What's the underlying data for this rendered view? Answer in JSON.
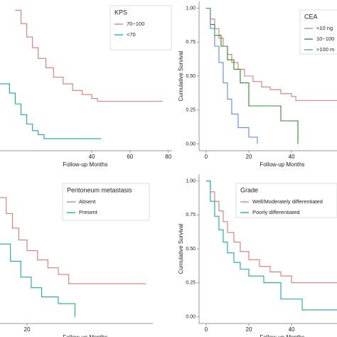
{
  "chart_data": [
    {
      "type": "line",
      "step": true,
      "legend_title": "KPS",
      "xlabel": "Follow-up Months",
      "xlim": [
        -8,
        82
      ],
      "ylim": [
        -0.05,
        1.05
      ],
      "xticks": [
        40,
        60,
        80
      ],
      "series": [
        {
          "name": "70~100",
          "color": "#d97a70",
          "x": [
            0,
            3,
            6,
            9,
            12,
            16,
            20,
            25,
            30,
            35,
            40,
            43,
            77
          ],
          "values": [
            1,
            0.9,
            0.8,
            0.72,
            0.64,
            0.57,
            0.5,
            0.45,
            0.4,
            0.37,
            0.34,
            0.32,
            0.32
          ]
        },
        {
          "name": "<70",
          "color": "#1aa6ad",
          "x": [
            -8,
            -3,
            0,
            3,
            6,
            9,
            12,
            15,
            45
          ],
          "values": [
            0.45,
            0.38,
            0.3,
            0.22,
            0.15,
            0.1,
            0.07,
            0.04,
            0.04
          ]
        }
      ]
    },
    {
      "type": "line",
      "step": true,
      "legend_title": "CEA",
      "xlabel": "Follow-up Months",
      "ylabel": "Cumulative Survival",
      "xlim": [
        -3.3,
        61.3
      ],
      "ylim": [
        -0.05,
        1.05
      ],
      "xticks": [
        0,
        20,
        40
      ],
      "yticks": [
        {
          "value": 0,
          "label": "0.00"
        },
        {
          "value": 0.25,
          "label": "0.25"
        },
        {
          "value": 0.5,
          "label": "0.50"
        },
        {
          "value": 0.75,
          "label": "0.75"
        },
        {
          "value": 1,
          "label": "1.00"
        }
      ],
      "series": [
        {
          "name": "<10 ng",
          "color": "#d97a70",
          "x": [
            0,
            2,
            4,
            6,
            8,
            10,
            12,
            15,
            18,
            22,
            26,
            30,
            35,
            40,
            42,
            62
          ],
          "values": [
            1,
            0.92,
            0.85,
            0.78,
            0.72,
            0.66,
            0.6,
            0.55,
            0.5,
            0.46,
            0.42,
            0.4,
            0.37,
            0.35,
            0.32,
            0.32
          ]
        },
        {
          "name": "10~100",
          "color": "#2e8b2e",
          "x": [
            0,
            2,
            4,
            7,
            10,
            13,
            16,
            20,
            25,
            35,
            43
          ],
          "values": [
            1,
            0.88,
            0.8,
            0.72,
            0.62,
            0.55,
            0.45,
            0.28,
            0.28,
            0.17,
            0
          ]
        },
        {
          "name": ">100 m",
          "color": "#5b8fd4",
          "x": [
            0,
            2,
            4,
            6,
            8,
            10,
            12,
            15,
            20,
            24
          ],
          "values": [
            1,
            0.85,
            0.72,
            0.6,
            0.45,
            0.33,
            0.22,
            0.12,
            0.05,
            0
          ]
        }
      ]
    },
    {
      "type": "line",
      "step": true,
      "legend_title": "Peritoneum metastasis",
      "xlabel": "Follow-up Months",
      "xlim": [
        7,
        80.4
      ],
      "ylim": [
        -0.05,
        1.05
      ],
      "xticks": [
        20
      ],
      "series": [
        {
          "name": "Absent",
          "color": "#d97a70",
          "x": [
            7,
            10,
            13,
            16,
            20,
            25,
            30,
            35,
            40,
            77
          ],
          "values": [
            0.9,
            0.78,
            0.67,
            0.58,
            0.5,
            0.43,
            0.37,
            0.32,
            0.25,
            0.25
          ]
        },
        {
          "name": "Present",
          "color": "#1aa6ad",
          "x": [
            7,
            12,
            17,
            22,
            27,
            35,
            43
          ],
          "values": [
            0.55,
            0.42,
            0.3,
            0.22,
            0.15,
            0.1,
            0
          ]
        }
      ]
    },
    {
      "type": "line",
      "step": true,
      "legend_title": "Grade",
      "xlabel": "Follow-up Months",
      "ylabel": "Cumulative Survival",
      "xlim": [
        -3.3,
        61.3
      ],
      "ylim": [
        -0.05,
        1.05
      ],
      "xticks": [
        0,
        20,
        40
      ],
      "yticks": [
        {
          "value": 0,
          "label": "0.00"
        },
        {
          "value": 0.25,
          "label": "0.25"
        },
        {
          "value": 0.5,
          "label": "0.50"
        },
        {
          "value": 0.75,
          "label": "0.75"
        },
        {
          "value": 1,
          "label": "1.00"
        }
      ],
      "series": [
        {
          "name": "Well/Moderately differentiated",
          "color": "#d97a70",
          "x": [
            0,
            2,
            4,
            6,
            8,
            10,
            13,
            16,
            20,
            25,
            30,
            35,
            40,
            62
          ],
          "values": [
            1,
            0.92,
            0.85,
            0.78,
            0.7,
            0.62,
            0.55,
            0.48,
            0.42,
            0.37,
            0.33,
            0.3,
            0.25,
            0.25
          ]
        },
        {
          "name": "Poorly differentiated",
          "color": "#1aa6ad",
          "x": [
            0,
            2,
            4,
            6,
            8,
            10,
            13,
            16,
            20,
            27,
            35,
            45,
            62
          ],
          "values": [
            1,
            0.85,
            0.74,
            0.64,
            0.55,
            0.47,
            0.4,
            0.35,
            0.3,
            0.25,
            0.13,
            0.05,
            0.05
          ]
        }
      ]
    }
  ]
}
